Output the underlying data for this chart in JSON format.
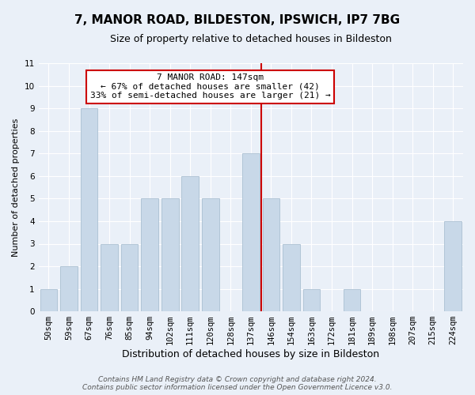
{
  "title": "7, MANOR ROAD, BILDESTON, IPSWICH, IP7 7BG",
  "subtitle": "Size of property relative to detached houses in Bildeston",
  "xlabel": "Distribution of detached houses by size in Bildeston",
  "ylabel": "Number of detached properties",
  "categories": [
    "50sqm",
    "59sqm",
    "67sqm",
    "76sqm",
    "85sqm",
    "94sqm",
    "102sqm",
    "111sqm",
    "120sqm",
    "128sqm",
    "137sqm",
    "146sqm",
    "154sqm",
    "163sqm",
    "172sqm",
    "181sqm",
    "189sqm",
    "198sqm",
    "207sqm",
    "215sqm",
    "224sqm"
  ],
  "values": [
    1,
    2,
    9,
    3,
    3,
    5,
    5,
    6,
    5,
    0,
    7,
    5,
    3,
    1,
    0,
    1,
    0,
    0,
    0,
    0,
    4
  ],
  "bar_color": "#c8d8e8",
  "bar_edge_color": "#a0b8cc",
  "highlight_index": 11,
  "highlight_color": "#cc0000",
  "annotation_text": "7 MANOR ROAD: 147sqm\n← 67% of detached houses are smaller (42)\n33% of semi-detached houses are larger (21) →",
  "annotation_box_color": "#ffffff",
  "annotation_border_color": "#cc0000",
  "ylim": [
    0,
    11
  ],
  "yticks": [
    0,
    1,
    2,
    3,
    4,
    5,
    6,
    7,
    8,
    9,
    10,
    11
  ],
  "background_color": "#eaf0f8",
  "grid_color": "#ffffff",
  "footer_line1": "Contains HM Land Registry data © Crown copyright and database right 2024.",
  "footer_line2": "Contains public sector information licensed under the Open Government Licence v3.0.",
  "title_fontsize": 11,
  "subtitle_fontsize": 9,
  "xlabel_fontsize": 9,
  "ylabel_fontsize": 8,
  "tick_fontsize": 7.5,
  "annotation_fontsize": 8,
  "footer_fontsize": 6.5
}
